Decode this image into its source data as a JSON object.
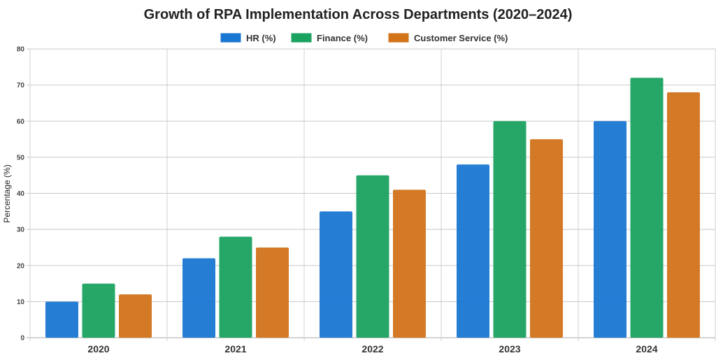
{
  "chart_data": {
    "type": "bar",
    "title": "Growth of RPA Implementation Across Departments (2020–2024)",
    "xlabel": "",
    "ylabel": "Percentage (%)",
    "ylim": [
      0,
      80
    ],
    "yticks": [
      0,
      10,
      20,
      30,
      40,
      50,
      60,
      70,
      80
    ],
    "categories": [
      "2020",
      "2021",
      "2022",
      "2023",
      "2024"
    ],
    "grid": true,
    "legend_placement": "top",
    "series": [
      {
        "name": "HR (%)",
        "color": "#1976d2",
        "values": [
          10,
          22,
          35,
          48,
          60
        ]
      },
      {
        "name": "Finance (%)",
        "color": "#1aa260",
        "values": [
          15,
          28,
          45,
          60,
          72
        ]
      },
      {
        "name": "Customer Service (%)",
        "color": "#d2731a",
        "values": [
          12,
          25,
          41,
          55,
          68
        ]
      }
    ]
  }
}
